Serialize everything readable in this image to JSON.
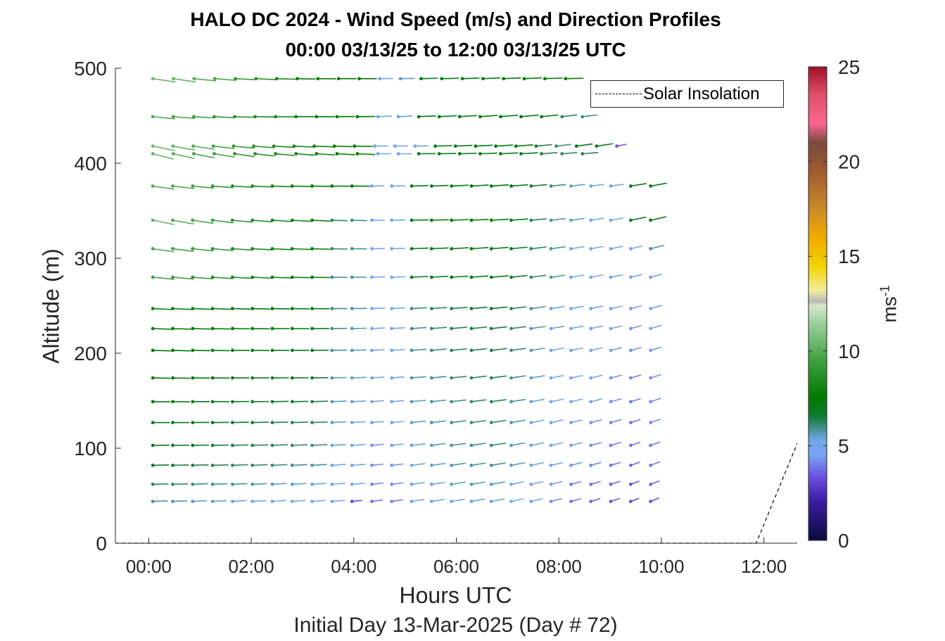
{
  "title": {
    "line1": "HALO DC 2024 - Wind Speed (m/s) and Direction Profiles",
    "line2": "00:00 03/13/25 to 12:00 03/13/25  UTC"
  },
  "axes": {
    "xlabel": "Hours UTC",
    "sublabel": "Initial Day 13-Mar-2025 (Day # 72)",
    "ylabel": "Altitude (m)",
    "colorbar_label": "ms",
    "colorbar_label_exp": "-1"
  },
  "legend": {
    "label": "Solar Insolation"
  },
  "chart_data": {
    "type": "scatter",
    "subtype": "wind-barb/quiver profile",
    "xlim": [
      -0.65,
      12.65
    ],
    "ylim": [
      0,
      500
    ],
    "x_unit": "hours UTC",
    "y_unit": "m",
    "x_ticks": [
      0,
      2,
      4,
      6,
      8,
      10,
      12
    ],
    "x_tick_labels": [
      "00:00",
      "02:00",
      "04:00",
      "06:00",
      "08:00",
      "10:00",
      "12:00"
    ],
    "y_ticks": [
      0,
      100,
      200,
      300,
      400,
      500
    ],
    "y_tick_labels": [
      "0",
      "100",
      "200",
      "300",
      "400",
      "500"
    ],
    "colorbar": {
      "range": [
        0,
        25
      ],
      "ticks": [
        0,
        5,
        10,
        15,
        20,
        25
      ],
      "tick_labels": [
        "0",
        "5",
        "10",
        "15",
        "20",
        "25"
      ],
      "stops": [
        {
          "v": 0,
          "c": "#0b0b3d"
        },
        {
          "v": 2,
          "c": "#3b1c9e"
        },
        {
          "v": 3.3,
          "c": "#6a4ce0"
        },
        {
          "v": 4.5,
          "c": "#7aa2f2"
        },
        {
          "v": 5.3,
          "c": "#6fa8e6"
        },
        {
          "v": 6.0,
          "c": "#3d8c7f"
        },
        {
          "v": 6.6,
          "c": "#0f7a2e"
        },
        {
          "v": 7.5,
          "c": "#007a00"
        },
        {
          "v": 9.5,
          "c": "#3fa040"
        },
        {
          "v": 11.5,
          "c": "#9fd09f"
        },
        {
          "v": 12.4,
          "c": "#d8e7c8"
        },
        {
          "v": 12.6,
          "c": "#b8b8b8"
        },
        {
          "v": 13.2,
          "c": "#f3ec9a"
        },
        {
          "v": 14.5,
          "c": "#f2d200"
        },
        {
          "v": 16,
          "c": "#f2a900"
        },
        {
          "v": 17.5,
          "c": "#c98a2a"
        },
        {
          "v": 19.5,
          "c": "#a05a30"
        },
        {
          "v": 21,
          "c": "#7a4a3c"
        },
        {
          "v": 22,
          "c": "#f9668e"
        },
        {
          "v": 23.5,
          "c": "#e0506a"
        },
        {
          "v": 25,
          "c": "#a0102a"
        }
      ]
    },
    "solar_insolation_line": {
      "style": "dashed",
      "x": [
        -0.65,
        11.85,
        12.65
      ],
      "y": [
        0,
        0,
        105
      ]
    },
    "profiles": [
      {
        "alt": 489,
        "t_start": 0.08,
        "t_end": 8.13,
        "dir": [
          285,
          285,
          280,
          278,
          275,
          275,
          273,
          272,
          271,
          270,
          270,
          268,
          268,
          267,
          267,
          266,
          265,
          265,
          265,
          266,
          267
        ],
        "spd": [
          10.5,
          10.3,
          10,
          9.8,
          9.2,
          8.8,
          8.2,
          7.8,
          7.6,
          7.6,
          7.4,
          5.0,
          5.5,
          6.9,
          7.0,
          7.1,
          7.2,
          7.2,
          7.3,
          7.4,
          7.5
        ]
      },
      {
        "alt": 449,
        "t_start": 0.08,
        "t_end": 8.46,
        "dir": [
          280,
          278,
          276,
          275,
          273,
          272,
          271,
          270,
          270,
          269,
          269,
          265,
          265,
          265,
          264,
          263,
          262,
          261,
          260,
          259,
          258,
          258
        ],
        "spd": [
          10,
          9.8,
          9.5,
          9.2,
          8.8,
          8.5,
          8.2,
          7.9,
          7.7,
          7.6,
          7.5,
          5.2,
          5.4,
          7.2,
          7.2,
          7.2,
          7.3,
          7.3,
          7.4,
          7.0,
          6.2,
          6.0
        ]
      },
      {
        "alt": 418,
        "t_start": 0.08,
        "t_end": 9.13,
        "dir": [
          290,
          288,
          285,
          282,
          280,
          278,
          276,
          275,
          274,
          273,
          272,
          268,
          268,
          267,
          266,
          265,
          264,
          263,
          262,
          260,
          258,
          256,
          255,
          250
        ],
        "spd": [
          10.5,
          10.3,
          10,
          9.6,
          9.2,
          8.8,
          8.5,
          8.2,
          7.9,
          7.7,
          7.6,
          4.9,
          4.8,
          5.0,
          6.9,
          7.0,
          7.1,
          7.2,
          7.2,
          6.5,
          6.0,
          6.8,
          7.0,
          3.5
        ]
      },
      {
        "alt": 410,
        "t_start": 0.08,
        "t_end": 8.46,
        "dir": [
          295,
          292,
          290,
          287,
          285,
          282,
          280,
          278,
          277,
          276,
          275,
          270,
          270,
          269,
          268,
          267,
          266,
          265,
          264,
          263,
          262,
          262
        ],
        "spd": [
          10.3,
          10.1,
          9.8,
          9.4,
          9.0,
          8.6,
          8.3,
          8.0,
          7.8,
          7.6,
          7.5,
          5.0,
          5.1,
          6.8,
          6.9,
          7.0,
          7.1,
          7.2,
          7.0,
          6.4,
          6.1,
          6.3
        ]
      },
      {
        "alt": 376,
        "t_start": 0.08,
        "t_end": 9.79,
        "dir": [
          285,
          282,
          280,
          278,
          276,
          275,
          274,
          273,
          272,
          271,
          271,
          268,
          268,
          267,
          266,
          265,
          264,
          263,
          262,
          261,
          260,
          258,
          257,
          256,
          254,
          252
        ],
        "spd": [
          10,
          9.8,
          9.5,
          9.1,
          8.7,
          8.4,
          8.1,
          7.9,
          7.7,
          7.6,
          7.5,
          4.6,
          5.0,
          6.9,
          7.0,
          7.1,
          7.2,
          7.3,
          7.1,
          6.5,
          6.0,
          5.5,
          5.2,
          4.9,
          6.8,
          7.0
        ]
      },
      {
        "alt": 340,
        "t_start": 0.08,
        "t_end": 9.79,
        "dir": [
          290,
          288,
          285,
          283,
          280,
          278,
          277,
          276,
          275,
          274,
          273,
          270,
          269,
          268,
          267,
          266,
          265,
          264,
          262,
          260,
          258,
          256,
          254,
          252,
          250,
          248
        ],
        "spd": [
          10.2,
          9.9,
          9.6,
          9.2,
          8.8,
          8.5,
          8.2,
          7.9,
          7.7,
          6.2,
          6.0,
          4.7,
          5.0,
          7.0,
          7.1,
          7.2,
          7.2,
          7.3,
          7.0,
          6.3,
          5.8,
          5.5,
          5.2,
          5.0,
          6.7,
          6.9
        ]
      },
      {
        "alt": 310,
        "t_start": 0.08,
        "t_end": 9.79,
        "dir": [
          285,
          283,
          281,
          279,
          277,
          276,
          275,
          274,
          273,
          272,
          271,
          268,
          267,
          266,
          265,
          264,
          263,
          262,
          260,
          258,
          256,
          254,
          252,
          250,
          247,
          245
        ],
        "spd": [
          9.8,
          9.5,
          9.2,
          8.9,
          8.5,
          8.2,
          8.0,
          7.8,
          7.6,
          6.1,
          5.9,
          4.8,
          5.0,
          6.9,
          7.0,
          7.1,
          7.1,
          7.2,
          6.8,
          6.2,
          5.8,
          5.3,
          5.0,
          4.8,
          4.6,
          5.8
        ]
      },
      {
        "alt": 280,
        "t_start": 0.08,
        "t_end": 9.79,
        "dir": [
          280,
          279,
          278,
          277,
          276,
          275,
          274,
          273,
          272,
          271,
          270,
          267,
          266,
          265,
          264,
          263,
          262,
          261,
          259,
          257,
          255,
          253,
          251,
          249,
          246,
          244
        ],
        "spd": [
          9.6,
          9.3,
          9.0,
          8.7,
          8.4,
          8.1,
          7.9,
          7.7,
          7.5,
          6.0,
          5.8,
          4.9,
          5.0,
          6.8,
          6.9,
          7.0,
          7.0,
          7.1,
          6.7,
          6.1,
          5.7,
          5.2,
          4.9,
          4.7,
          4.5,
          4.7
        ]
      },
      {
        "alt": 247,
        "t_start": 0.08,
        "t_end": 9.79,
        "dir": [
          275,
          275,
          274,
          274,
          273,
          273,
          272,
          272,
          271,
          270,
          269,
          266,
          265,
          264,
          263,
          262,
          261,
          260,
          258,
          256,
          254,
          252,
          250,
          248,
          245,
          243
        ],
        "spd": [
          8.0,
          7.9,
          7.8,
          7.7,
          7.6,
          7.5,
          7.4,
          7.3,
          7.2,
          6.0,
          5.8,
          4.8,
          4.9,
          6.0,
          6.2,
          6.4,
          6.5,
          6.6,
          6.2,
          5.8,
          5.4,
          5.0,
          4.8,
          4.6,
          4.4,
          4.6
        ]
      },
      {
        "alt": 226,
        "t_start": 0.08,
        "t_end": 9.79,
        "dir": [
          274,
          274,
          273,
          273,
          272,
          272,
          271,
          271,
          270,
          269,
          268,
          265,
          264,
          263,
          262,
          261,
          260,
          259,
          257,
          255,
          253,
          251,
          249,
          247,
          244,
          242
        ],
        "spd": [
          7.8,
          7.7,
          7.6,
          7.5,
          7.4,
          7.3,
          7.2,
          7.1,
          7.0,
          5.9,
          5.7,
          4.8,
          4.9,
          5.9,
          6.1,
          6.3,
          6.4,
          6.5,
          6.1,
          5.7,
          5.3,
          4.9,
          4.7,
          4.5,
          4.3,
          4.5
        ]
      },
      {
        "alt": 203,
        "t_start": 0.08,
        "t_end": 9.79,
        "dir": [
          273,
          273,
          272,
          272,
          271,
          271,
          270,
          270,
          269,
          268,
          267,
          264,
          263,
          262,
          261,
          260,
          259,
          258,
          256,
          254,
          252,
          250,
          248,
          246,
          243,
          241
        ],
        "spd": [
          7.6,
          7.5,
          7.4,
          7.3,
          7.2,
          7.1,
          7.0,
          6.9,
          6.8,
          5.8,
          5.6,
          4.7,
          4.8,
          5.8,
          6.0,
          6.2,
          6.3,
          6.4,
          6.0,
          5.6,
          5.2,
          4.8,
          4.6,
          4.4,
          4.2,
          4.4
        ]
      },
      {
        "alt": 174,
        "t_start": 0.08,
        "t_end": 9.79,
        "dir": [
          272,
          272,
          271,
          271,
          270,
          270,
          269,
          269,
          268,
          267,
          266,
          263,
          262,
          261,
          260,
          259,
          258,
          257,
          255,
          253,
          251,
          249,
          247,
          245,
          242,
          240
        ],
        "spd": [
          7.4,
          7.3,
          7.2,
          7.1,
          7.0,
          6.9,
          6.8,
          6.7,
          6.6,
          5.7,
          5.5,
          4.6,
          4.7,
          5.7,
          5.9,
          6.1,
          6.2,
          6.3,
          5.9,
          5.5,
          5.1,
          4.7,
          4.5,
          4.3,
          4.1,
          4.3
        ]
      },
      {
        "alt": 149,
        "t_start": 0.08,
        "t_end": 9.79,
        "dir": [
          271,
          271,
          270,
          270,
          269,
          269,
          268,
          268,
          267,
          266,
          265,
          262,
          261,
          260,
          259,
          258,
          257,
          256,
          254,
          252,
          250,
          248,
          246,
          244,
          241,
          239
        ],
        "spd": [
          7.2,
          7.1,
          7.0,
          6.9,
          6.8,
          6.7,
          6.6,
          6.5,
          6.4,
          5.6,
          5.4,
          4.5,
          4.6,
          5.6,
          5.8,
          6.0,
          6.1,
          6.2,
          5.8,
          5.4,
          5.0,
          4.6,
          4.4,
          4.2,
          4.0,
          4.2
        ]
      },
      {
        "alt": 127,
        "t_start": 0.08,
        "t_end": 9.79,
        "dir": [
          270,
          270,
          269,
          269,
          268,
          268,
          267,
          267,
          266,
          265,
          264,
          261,
          260,
          259,
          258,
          257,
          256,
          255,
          253,
          251,
          249,
          247,
          245,
          243,
          240,
          238
        ],
        "spd": [
          7.0,
          6.9,
          6.8,
          6.7,
          6.6,
          6.5,
          6.4,
          6.3,
          6.2,
          5.5,
          5.3,
          4.4,
          4.5,
          5.5,
          5.7,
          5.9,
          6.0,
          6.1,
          5.7,
          5.3,
          4.9,
          4.5,
          4.3,
          4.1,
          3.9,
          4.1
        ]
      },
      {
        "alt": 103,
        "t_start": 0.08,
        "t_end": 9.79,
        "dir": [
          269,
          269,
          268,
          268,
          267,
          267,
          266,
          266,
          265,
          264,
          263,
          260,
          259,
          258,
          257,
          256,
          255,
          254,
          252,
          250,
          248,
          246,
          244,
          242,
          239,
          237
        ],
        "spd": [
          6.8,
          6.7,
          6.6,
          6.5,
          6.4,
          6.3,
          6.2,
          6.1,
          6.0,
          5.4,
          5.2,
          4.3,
          4.4,
          5.4,
          5.6,
          5.8,
          5.9,
          6.0,
          5.6,
          5.2,
          4.8,
          4.4,
          4.2,
          4.0,
          3.8,
          4.0
        ]
      },
      {
        "alt": 82,
        "t_start": 0.08,
        "t_end": 9.79,
        "dir": [
          268,
          268,
          267,
          267,
          266,
          266,
          265,
          265,
          264,
          263,
          262,
          259,
          258,
          257,
          256,
          255,
          254,
          253,
          251,
          249,
          247,
          245,
          243,
          241,
          238,
          236
        ],
        "spd": [
          6.6,
          6.5,
          6.4,
          6.3,
          6.2,
          6.1,
          6.0,
          5.9,
          5.8,
          5.3,
          5.1,
          4.2,
          4.3,
          5.3,
          5.5,
          5.7,
          5.8,
          5.9,
          5.5,
          5.1,
          4.7,
          4.3,
          4.1,
          3.9,
          3.7,
          3.9
        ]
      },
      {
        "alt": 62,
        "t_start": 0.08,
        "t_end": 9.79,
        "dir": [
          267,
          267,
          266,
          266,
          265,
          265,
          264,
          264,
          263,
          262,
          261,
          258,
          257,
          256,
          255,
          254,
          253,
          252,
          250,
          248,
          246,
          244,
          242,
          240,
          237,
          235
        ],
        "spd": [
          6.2,
          6.1,
          6.0,
          5.9,
          5.8,
          5.7,
          5.6,
          5.5,
          5.4,
          5.1,
          4.9,
          4.1,
          4.2,
          5.1,
          5.3,
          5.5,
          5.6,
          5.6,
          5.2,
          4.8,
          4.4,
          4.0,
          3.8,
          3.6,
          3.4,
          3.6
        ]
      },
      {
        "alt": 44,
        "t_start": 0.08,
        "t_end": 9.79,
        "dir": [
          266,
          266,
          265,
          265,
          264,
          264,
          263,
          263,
          262,
          261,
          260,
          257,
          256,
          255,
          254,
          253,
          252,
          251,
          249,
          247,
          245,
          243,
          241,
          239,
          236,
          234
        ],
        "spd": [
          5.8,
          5.7,
          5.6,
          5.5,
          5.4,
          5.3,
          5.2,
          5.1,
          5.0,
          4.9,
          3.2,
          3.9,
          4.0,
          4.9,
          5.1,
          5.3,
          5.4,
          5.4,
          5.0,
          4.6,
          4.2,
          3.8,
          3.6,
          3.4,
          3.2,
          3.4
        ]
      }
    ]
  }
}
